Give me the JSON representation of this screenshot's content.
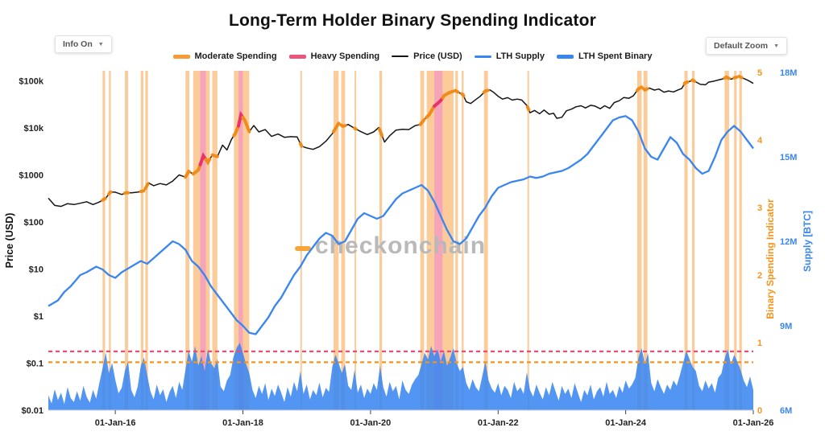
{
  "title": "Long-Term Holder Binary Spending Indicator",
  "controls": {
    "info_label": "Info On",
    "zoom_label": "Default Zoom",
    "caret": "▼"
  },
  "legend": [
    {
      "label": "Moderate Spending",
      "color": "#f79a38",
      "style": "thick"
    },
    {
      "label": "Heavy Spending",
      "color": "#ee537b",
      "style": "thick"
    },
    {
      "label": "Price (USD)",
      "color": "#161616",
      "style": "line"
    },
    {
      "label": "LTH Supply",
      "color": "#3a86f0",
      "style": "medium"
    },
    {
      "label": "LTH Spent Binary",
      "color": "#3a86f0",
      "style": "thick"
    }
  ],
  "watermark": {
    "text": "checkonchain",
    "color": "#b9b9b9",
    "accent_color": "#f7a43c"
  },
  "colors": {
    "moderate": "#f08c1a",
    "heavy": "#e8336a",
    "band_moderate": "rgba(247,153,53,0.5)",
    "band_heavy": "rgba(238,90,125,0.55)",
    "price": "#161616",
    "supply": "#3a86f0",
    "threshold_moderate": "#f7931a",
    "threshold_heavy": "#ee4d72",
    "binary_axis": "#f7931a",
    "supply_axis": "#3a86f0"
  },
  "axes": {
    "x": {
      "ticks": [
        2016,
        2018,
        2020,
        2022,
        2024,
        2026
      ],
      "labels": [
        "01-Jan-16",
        "01-Jan-18",
        "01-Jan-20",
        "01-Jan-22",
        "01-Jan-24",
        "01-Jan-26"
      ]
    },
    "price": {
      "title": "Price (USD)",
      "values": [
        0.01,
        0.1,
        1,
        10,
        100,
        1000,
        10000,
        100000
      ],
      "labels": [
        "$0.01",
        "$0.1",
        "$1",
        "$10",
        "$100",
        "$1000",
        "$10k",
        "$100k"
      ]
    },
    "binary": {
      "title": "Binary Spending Indicator",
      "ticks": [
        0,
        1,
        2,
        3,
        4,
        5
      ]
    },
    "supply": {
      "title": "Supply [BTC]",
      "values": [
        6,
        9,
        12,
        15,
        18
      ],
      "labels": [
        "6M",
        "9M",
        "12M",
        "15M",
        "18M"
      ]
    }
  },
  "chart_data": {
    "type": "line",
    "x_range": [
      2014.95,
      2026.0
    ],
    "price_log_range": [
      0.01,
      163000
    ],
    "binary_range": [
      0,
      5
    ],
    "supply_range_m": [
      6,
      18
    ],
    "thresholds": {
      "heavy": 0.87,
      "moderate": 0.71
    },
    "bands": [
      [
        2015.8,
        2015.84,
        "m"
      ],
      [
        2015.9,
        2015.93,
        "m"
      ],
      [
        2016.15,
        2016.2,
        "m"
      ],
      [
        2016.4,
        2016.44,
        "m"
      ],
      [
        2016.47,
        2016.51,
        "m"
      ],
      [
        2017.1,
        2017.16,
        "m"
      ],
      [
        2017.22,
        2017.33,
        "m"
      ],
      [
        2017.33,
        2017.42,
        "h"
      ],
      [
        2017.42,
        2017.48,
        "m"
      ],
      [
        2017.52,
        2017.6,
        "m"
      ],
      [
        2017.86,
        2017.93,
        "m"
      ],
      [
        2017.93,
        2018.0,
        "h"
      ],
      [
        2018.0,
        2018.1,
        "m"
      ],
      [
        2018.9,
        2018.92,
        "m"
      ],
      [
        2019.42,
        2019.5,
        "m"
      ],
      [
        2019.54,
        2019.6,
        "m"
      ],
      [
        2019.75,
        2019.77,
        "m"
      ],
      [
        2020.14,
        2020.18,
        "m"
      ],
      [
        2020.78,
        2020.84,
        "m"
      ],
      [
        2020.88,
        2021.0,
        "m"
      ],
      [
        2021.0,
        2021.13,
        "h"
      ],
      [
        2021.13,
        2021.3,
        "m"
      ],
      [
        2021.33,
        2021.37,
        "m"
      ],
      [
        2021.43,
        2021.46,
        "m"
      ],
      [
        2021.78,
        2021.84,
        "m"
      ],
      [
        2022.46,
        2022.48,
        "m"
      ],
      [
        2024.18,
        2024.25,
        "m"
      ],
      [
        2024.28,
        2024.34,
        "m"
      ],
      [
        2024.92,
        2024.97,
        "m"
      ],
      [
        2025.04,
        2025.08,
        "m"
      ],
      [
        2025.55,
        2025.62,
        "m"
      ],
      [
        2025.7,
        2025.74,
        "m"
      ],
      [
        2025.78,
        2025.82,
        "m"
      ]
    ],
    "price_usd": {
      "name": "Price (USD)",
      "x": [
        2014.95,
        2015.05,
        2015.15,
        2015.25,
        2015.35,
        2015.45,
        2015.55,
        2015.65,
        2015.75,
        2015.85,
        2015.92,
        2016.0,
        2016.1,
        2016.17,
        2016.25,
        2016.35,
        2016.45,
        2016.52,
        2016.6,
        2016.7,
        2016.8,
        2016.9,
        2017.0,
        2017.1,
        2017.15,
        2017.22,
        2017.3,
        2017.38,
        2017.45,
        2017.52,
        2017.6,
        2017.68,
        2017.75,
        2017.82,
        2017.88,
        2017.93,
        2017.97,
        2018.03,
        2018.1,
        2018.17,
        2018.25,
        2018.35,
        2018.45,
        2018.55,
        2018.65,
        2018.75,
        2018.85,
        2018.92,
        2019.0,
        2019.1,
        2019.2,
        2019.3,
        2019.4,
        2019.5,
        2019.57,
        2019.65,
        2019.75,
        2019.85,
        2019.95,
        2020.05,
        2020.13,
        2020.22,
        2020.3,
        2020.4,
        2020.5,
        2020.6,
        2020.7,
        2020.78,
        2020.85,
        2020.92,
        2021.0,
        2021.05,
        2021.1,
        2021.15,
        2021.22,
        2021.28,
        2021.33,
        2021.4,
        2021.45,
        2021.5,
        2021.57,
        2021.65,
        2021.72,
        2021.8,
        2021.87,
        2021.93,
        2022.0,
        2022.07,
        2022.15,
        2022.22,
        2022.3,
        2022.37,
        2022.45,
        2022.5,
        2022.57,
        2022.65,
        2022.72,
        2022.8,
        2022.87,
        2022.92,
        2023.0,
        2023.07,
        2023.15,
        2023.22,
        2023.3,
        2023.37,
        2023.45,
        2023.52,
        2023.6,
        2023.67,
        2023.75,
        2023.82,
        2023.9,
        2023.97,
        2024.05,
        2024.12,
        2024.2,
        2024.25,
        2024.3,
        2024.37,
        2024.45,
        2024.52,
        2024.6,
        2024.67,
        2024.75,
        2024.82,
        2024.88,
        2024.93,
        2025.0,
        2025.05,
        2025.1,
        2025.17,
        2025.25,
        2025.3,
        2025.37,
        2025.45,
        2025.52,
        2025.58,
        2025.65,
        2025.72,
        2025.78,
        2025.85,
        2025.9,
        2025.95,
        2026.0
      ],
      "y": [
        320,
        225,
        215,
        245,
        235,
        250,
        270,
        235,
        265,
        320,
        430,
        430,
        385,
        420,
        415,
        430,
        460,
        680,
        590,
        655,
        615,
        740,
        1000,
        900,
        1190,
        1050,
        1270,
        2550,
        1850,
        2650,
        2450,
        4300,
        3400,
        5700,
        7600,
        11000,
        19000,
        14500,
        8300,
        11200,
        8200,
        9200,
        6600,
        7400,
        6300,
        6500,
        6400,
        4100,
        3750,
        3500,
        4000,
        5200,
        7500,
        12500,
        10800,
        11800,
        9800,
        8300,
        7200,
        8200,
        10200,
        5000,
        6800,
        9000,
        9300,
        9200,
        11200,
        11800,
        15500,
        19000,
        29000,
        33000,
        38000,
        48000,
        55000,
        59000,
        62000,
        55000,
        51000,
        36000,
        33000,
        40000,
        47000,
        61000,
        64000,
        57000,
        47000,
        41000,
        44000,
        39000,
        41000,
        39000,
        30000,
        21000,
        23500,
        20000,
        24000,
        19500,
        20500,
        16000,
        16800,
        23000,
        25000,
        28000,
        29500,
        26500,
        30200,
        29000,
        25500,
        29500,
        26000,
        34500,
        37800,
        44200,
        42500,
        48000,
        68000,
        73500,
        64000,
        70500,
        63500,
        67000,
        57500,
        61000,
        58000,
        64000,
        69000,
        91000,
        97000,
        104000,
        94500,
        84000,
        82500,
        94000,
        97500,
        104000,
        110000,
        120000,
        108000,
        118000,
        124000,
        112000,
        105000,
        97000,
        88000
      ]
    },
    "lth_supply_m": {
      "name": "LTH Supply",
      "unit": "million BTC",
      "x": [
        2014.95,
        2015.1,
        2015.2,
        2015.3,
        2015.45,
        2015.55,
        2015.7,
        2015.8,
        2015.9,
        2016.0,
        2016.1,
        2016.25,
        2016.4,
        2016.5,
        2016.6,
        2016.75,
        2016.9,
        2017.0,
        2017.1,
        2017.2,
        2017.3,
        2017.4,
        2017.5,
        2017.6,
        2017.7,
        2017.8,
        2017.9,
        2018.0,
        2018.1,
        2018.2,
        2018.3,
        2018.4,
        2018.5,
        2018.6,
        2018.7,
        2018.8,
        2018.9,
        2019.0,
        2019.1,
        2019.2,
        2019.3,
        2019.4,
        2019.5,
        2019.6,
        2019.7,
        2019.8,
        2019.9,
        2020.0,
        2020.1,
        2020.2,
        2020.3,
        2020.4,
        2020.5,
        2020.6,
        2020.7,
        2020.8,
        2020.9,
        2021.0,
        2021.1,
        2021.2,
        2021.3,
        2021.4,
        2021.5,
        2021.6,
        2021.7,
        2021.8,
        2021.9,
        2022.0,
        2022.1,
        2022.2,
        2022.3,
        2022.4,
        2022.5,
        2022.6,
        2022.7,
        2022.8,
        2022.9,
        2023.0,
        2023.1,
        2023.2,
        2023.3,
        2023.4,
        2023.5,
        2023.6,
        2023.7,
        2023.8,
        2023.9,
        2024.0,
        2024.1,
        2024.2,
        2024.3,
        2024.4,
        2024.5,
        2024.6,
        2024.7,
        2024.8,
        2024.9,
        2025.0,
        2025.1,
        2025.2,
        2025.3,
        2025.4,
        2025.5,
        2025.6,
        2025.7,
        2025.8,
        2025.9,
        2026.0
      ],
      "y": [
        9.7,
        9.9,
        10.2,
        10.4,
        10.8,
        10.9,
        11.1,
        11.0,
        10.8,
        10.7,
        10.9,
        11.1,
        11.3,
        11.2,
        11.4,
        11.7,
        12.0,
        11.9,
        11.7,
        11.3,
        11.1,
        10.8,
        10.4,
        10.1,
        9.8,
        9.5,
        9.2,
        9.0,
        8.75,
        8.7,
        9.0,
        9.3,
        9.7,
        10.0,
        10.4,
        10.8,
        11.1,
        11.5,
        11.8,
        12.1,
        12.3,
        12.2,
        11.9,
        12.0,
        12.4,
        12.8,
        13.0,
        12.9,
        12.8,
        12.9,
        13.2,
        13.5,
        13.7,
        13.8,
        13.9,
        14.0,
        13.8,
        13.4,
        12.9,
        12.4,
        12.0,
        11.9,
        12.1,
        12.5,
        12.9,
        13.2,
        13.6,
        13.9,
        14.0,
        14.1,
        14.15,
        14.2,
        14.3,
        14.25,
        14.3,
        14.4,
        14.45,
        14.5,
        14.6,
        14.75,
        14.9,
        15.1,
        15.4,
        15.7,
        16.0,
        16.3,
        16.4,
        16.45,
        16.3,
        15.9,
        15.3,
        15.0,
        14.9,
        15.3,
        15.7,
        15.5,
        15.1,
        14.9,
        14.6,
        14.4,
        14.5,
        15.0,
        15.6,
        15.9,
        16.1,
        15.9,
        15.6,
        15.3
      ]
    },
    "lth_spent_binary": {
      "name": "LTH Spent Binary",
      "x0": 2014.95,
      "dx": 0.05,
      "values": [
        0.22,
        0.1,
        0.31,
        0.15,
        0.26,
        0.09,
        0.34,
        0.18,
        0.12,
        0.28,
        0.14,
        0.36,
        0.2,
        0.11,
        0.3,
        0.17,
        0.4,
        0.62,
        0.85,
        0.55,
        0.7,
        0.45,
        0.25,
        0.33,
        0.58,
        0.72,
        0.3,
        0.19,
        0.35,
        0.66,
        0.78,
        0.52,
        0.28,
        0.16,
        0.38,
        0.22,
        0.31,
        0.12,
        0.27,
        0.36,
        0.18,
        0.42,
        0.3,
        0.6,
        0.88,
        0.72,
        0.95,
        0.66,
        0.8,
        0.58,
        0.9,
        0.7,
        0.62,
        0.76,
        0.35,
        0.28,
        0.44,
        0.52,
        0.78,
        0.92,
        1.0,
        0.85,
        0.68,
        0.55,
        0.3,
        0.18,
        0.36,
        0.24,
        0.4,
        0.15,
        0.32,
        0.21,
        0.38,
        0.26,
        0.12,
        0.34,
        0.2,
        0.42,
        0.28,
        0.58,
        0.24,
        0.38,
        0.16,
        0.3,
        0.22,
        0.41,
        0.19,
        0.33,
        0.27,
        0.64,
        0.82,
        0.7,
        0.55,
        0.68,
        0.36,
        0.3,
        0.6,
        0.26,
        0.38,
        0.18,
        0.32,
        0.24,
        0.4,
        0.3,
        0.66,
        0.34,
        0.2,
        0.42,
        0.28,
        0.36,
        0.16,
        0.44,
        0.3,
        0.24,
        0.38,
        0.46,
        0.52,
        0.68,
        0.85,
        0.75,
        0.95,
        0.8,
        0.9,
        0.72,
        0.88,
        0.66,
        0.78,
        0.92,
        0.7,
        0.58,
        0.64,
        0.4,
        0.3,
        0.46,
        0.34,
        0.28,
        0.5,
        0.72,
        0.44,
        0.32,
        0.26,
        0.4,
        0.22,
        0.36,
        0.3,
        0.18,
        0.42,
        0.28,
        0.34,
        0.24,
        0.56,
        0.3,
        0.2,
        0.38,
        0.26,
        0.16,
        0.34,
        0.22,
        0.42,
        0.28,
        0.14,
        0.36,
        0.24,
        0.32,
        0.18,
        0.4,
        0.26,
        0.12,
        0.3,
        0.22,
        0.38,
        0.16,
        0.28,
        0.34,
        0.2,
        0.42,
        0.24,
        0.3,
        0.18,
        0.36,
        0.26,
        0.44,
        0.32,
        0.38,
        0.48,
        0.78,
        0.92,
        0.68,
        0.84,
        0.4,
        0.28,
        0.46,
        0.34,
        0.24,
        0.38,
        0.3,
        0.44,
        0.36,
        0.52,
        0.7,
        0.88,
        0.76,
        0.64,
        0.58,
        0.36,
        0.28,
        0.44,
        0.32,
        0.4,
        0.26,
        0.48,
        0.54,
        0.76,
        0.9,
        0.68,
        0.82,
        0.72,
        0.6,
        0.44,
        0.34,
        0.5,
        0.3
      ]
    }
  }
}
